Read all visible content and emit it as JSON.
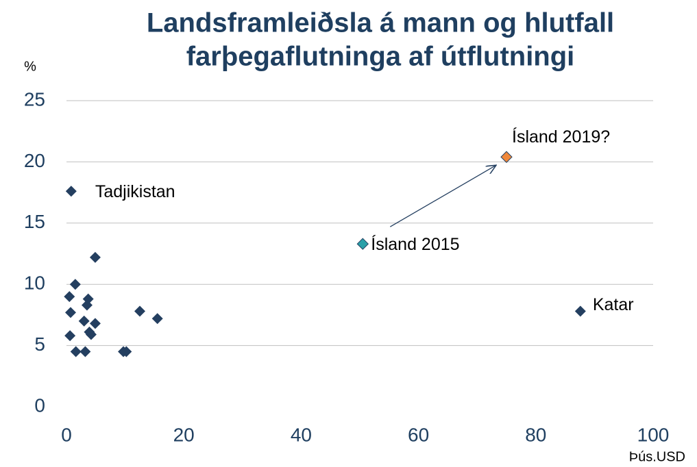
{
  "chart_data": {
    "type": "scatter",
    "title": [
      "Landsframleiðsla á mann og hlutfall",
      "farþegaflutninga af útflutningi"
    ],
    "y_label": "%",
    "x_label": "Þús.USD",
    "xlim": [
      0,
      100
    ],
    "xticks": [
      0,
      20,
      40,
      60,
      80,
      100
    ],
    "ylim": [
      0,
      25
    ],
    "yticks": [
      0,
      5,
      10,
      15,
      20,
      25
    ],
    "grid": true,
    "series": [
      {
        "color": "#243f60",
        "x": [
          1.5,
          4.9,
          0.5,
          3.7,
          3.5,
          0.7,
          12.5,
          15.5,
          3.0,
          4.9,
          3.9,
          4.2,
          0.6,
          1.6,
          3.2,
          9.7,
          10.2
        ],
        "values": [
          10.0,
          12.2,
          9.0,
          8.8,
          8.3,
          7.7,
          7.8,
          7.2,
          7.0,
          6.8,
          6.1,
          5.9,
          5.8,
          4.5,
          4.5,
          4.5,
          4.5
        ]
      },
      {
        "name": "Tadjikistan",
        "color": "#243f60",
        "x": [
          0.8
        ],
        "values": [
          17.6
        ]
      },
      {
        "name": "Katar",
        "color": "#243f60",
        "x": [
          87.6
        ],
        "values": [
          7.8
        ]
      },
      {
        "name": "Ísland 2015",
        "color": "#2aa0a8",
        "x": [
          50.5
        ],
        "values": [
          13.3
        ]
      },
      {
        "name": "Ísland 2019?",
        "color": "#f0883a",
        "x": [
          75.0
        ],
        "values": [
          20.4
        ]
      }
    ]
  }
}
